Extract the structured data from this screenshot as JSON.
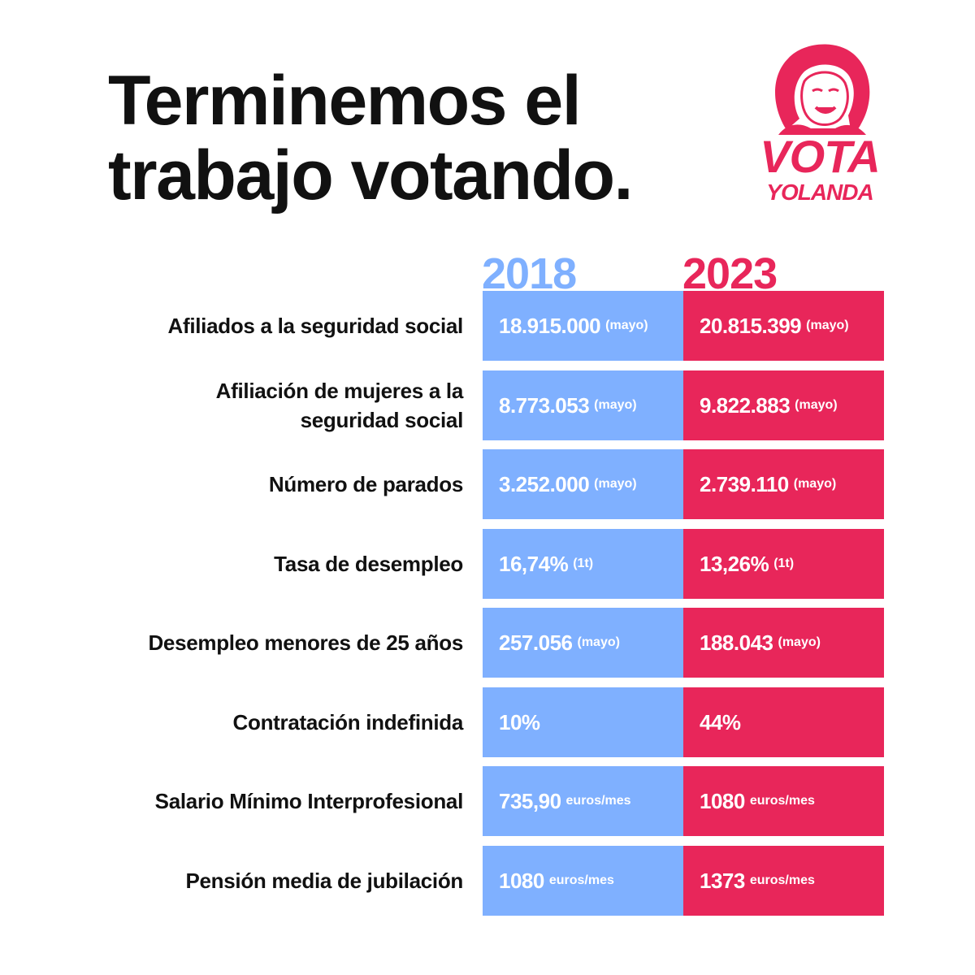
{
  "title": {
    "line1": "Terminemos el",
    "line2": "trabajo votando."
  },
  "logo": {
    "vota": "VOTA",
    "yolanda": "YOLANDA"
  },
  "years": {
    "left": "2018",
    "right": "2023"
  },
  "colors": {
    "blue": "#7fb0ff",
    "pink": "#e8265a"
  },
  "rows": [
    {
      "label": "Afiliados a la seguridad social",
      "v2018": "18.915.000",
      "n2018": "(mayo)",
      "v2023": "20.815.399",
      "n2023": "(mayo)"
    },
    {
      "label": "Afiliación de mujeres a la seguridad social",
      "v2018": "8.773.053",
      "n2018": "(mayo)",
      "v2023": "9.822.883",
      "n2023": "(mayo)"
    },
    {
      "label": "Número de parados",
      "v2018": "3.252.000",
      "n2018": "(mayo)",
      "v2023": "2.739.110",
      "n2023": "(mayo)"
    },
    {
      "label": "Tasa de desempleo",
      "v2018": "16,74%",
      "n2018": "(1t)",
      "v2023": "13,26%",
      "n2023": "(1t)"
    },
    {
      "label": "Desempleo menores de 25 años",
      "v2018": "257.056",
      "n2018": "(mayo)",
      "v2023": "188.043",
      "n2023": "(mayo)"
    },
    {
      "label": "Contratación indefinida",
      "v2018": "10%",
      "n2018": "",
      "v2023": "44%",
      "n2023": ""
    },
    {
      "label": "Salario Mínimo Interprofesional",
      "v2018": "735,90",
      "n2018": "euros/mes",
      "v2023": "1080",
      "n2023": "euros/mes"
    },
    {
      "label": "Pensión media de jubilación",
      "v2018": "1080",
      "n2018": "euros/mes",
      "v2023": "1373",
      "n2023": "euros/mes"
    }
  ]
}
